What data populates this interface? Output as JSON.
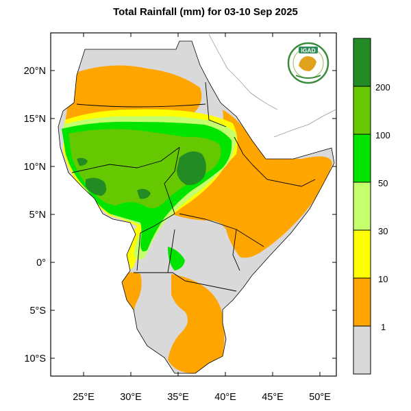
{
  "title": "Total Rainfall (mm) for 03-10 Sep 2025",
  "logo": {
    "text": "IGAD",
    "icon": "igad-logo"
  },
  "lat_ticks": [
    "20°N",
    "15°N",
    "10°N",
    "5°N",
    "0°",
    "5°S",
    "10°S"
  ],
  "lon_ticks": [
    "25°E",
    "30°E",
    "35°E",
    "40°E",
    "45°E",
    "50°E"
  ],
  "legend": {
    "labels": [
      "200",
      "100",
      "50",
      "30",
      "10",
      "1"
    ],
    "colors": [
      "#238b23",
      "#66c800",
      "#00e400",
      "#c6ff6e",
      "#ffff00",
      "#ffa500",
      "#d9d9d9"
    ]
  },
  "colors": {
    "no_rain": "#d9d9d9",
    "r1_10": "#ffa500",
    "r10_30": "#ffff00",
    "r30_50": "#c6ff6e",
    "r50_100": "#00e400",
    "r100_200": "#66c800",
    "r200": "#238b23"
  }
}
